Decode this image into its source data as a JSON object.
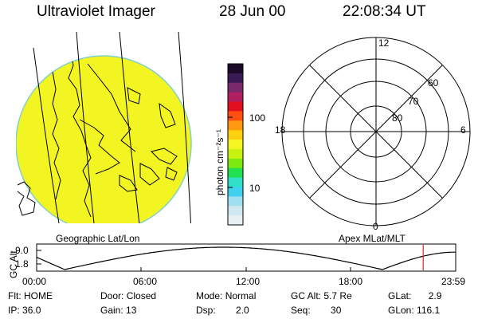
{
  "header": {
    "instrument": "Ultraviolet Imager",
    "date": "28 Jun 00",
    "time": "22:08:34 UT"
  },
  "geo_panel": {
    "label": "Geographic Lat/Lon",
    "image_color": "#f3f522",
    "limb_color": "#7fd0c8"
  },
  "colorbar": {
    "unit_label": "photon cm⁻²s⁻¹",
    "tick_labels": [
      "100",
      "10"
    ],
    "colors_top_to_bottom": [
      "#1a0a28",
      "#3a1a55",
      "#7a2a6a",
      "#b02060",
      "#e01020",
      "#ff5010",
      "#ff9a10",
      "#ffd010",
      "#f5f522",
      "#c8f010",
      "#7cea10",
      "#22e050",
      "#30e0c8",
      "#40d0f0",
      "#a0e0f0",
      "#d0e8f0",
      "#e8f0f4"
    ]
  },
  "polar_panel": {
    "label": "Apex MLat/MLT",
    "mlt_labels": {
      "top": "12",
      "left": "18",
      "right": "6",
      "bottom": "0"
    },
    "lat_labels": [
      "60",
      "70",
      "80"
    ]
  },
  "altitude_plot": {
    "ylabel": "GC Alt",
    "yticks": [
      "9.0",
      "1.8"
    ],
    "xticks": [
      "00:00",
      "06:00",
      "12:00",
      "18:00",
      "23:59"
    ],
    "marker_color": "#e02020",
    "marker_time_hours": 22.14
  },
  "status": {
    "flt_label": "Flt:",
    "flt_value": "HOME",
    "ip_label": "IP:",
    "ip_value": "36.0",
    "door_label": "Door:",
    "door_value": "Closed",
    "gain_label": "Gain:",
    "gain_value": "13",
    "mode_label": "Mode:",
    "mode_value": "Normal",
    "dsp_label": "Dsp:",
    "dsp_value": "2.0",
    "gcalt_label": "GC Alt:",
    "gcalt_value": "5.7 Re",
    "seq_label": "Seq:",
    "seq_value": "30",
    "glat_label": "GLat:",
    "glat_value": "2.9",
    "glon_label": "GLon:",
    "glon_value": "116.1"
  }
}
